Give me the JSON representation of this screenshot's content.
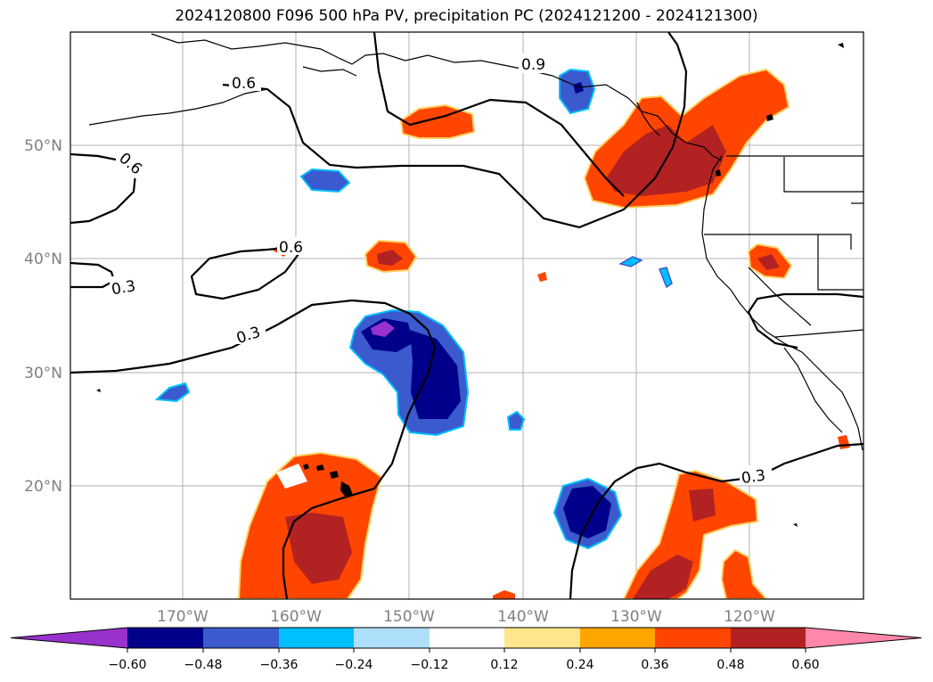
{
  "title": "2024120800 F096 500 hPa PV, precipitation PC (2024121200 - 2024121300)",
  "map": {
    "lat_labels": [
      "50°N",
      "40°N",
      "30°N",
      "20°N"
    ],
    "lon_labels": [
      "170°W",
      "160°W",
      "150°W",
      "140°W",
      "130°W",
      "120°W"
    ],
    "contour_labels": [
      "0.6",
      "0.9",
      "0.6",
      "0.6",
      "0.3",
      "0.3",
      "0.3"
    ]
  },
  "colorbar": {
    "ticks": [
      "−0.60",
      "−0.48",
      "−0.36",
      "−0.24",
      "−0.12",
      "0.12",
      "0.24",
      "0.36",
      "0.48",
      "0.60"
    ],
    "colors": [
      "#9932CC",
      "#00008B",
      "#3A5ACD",
      "#00BFFF",
      "#ADDFF8",
      "#FFFFFF",
      "#FFE68C",
      "#FFA500",
      "#FF4500",
      "#B22222",
      "#FF88AA"
    ]
  }
}
